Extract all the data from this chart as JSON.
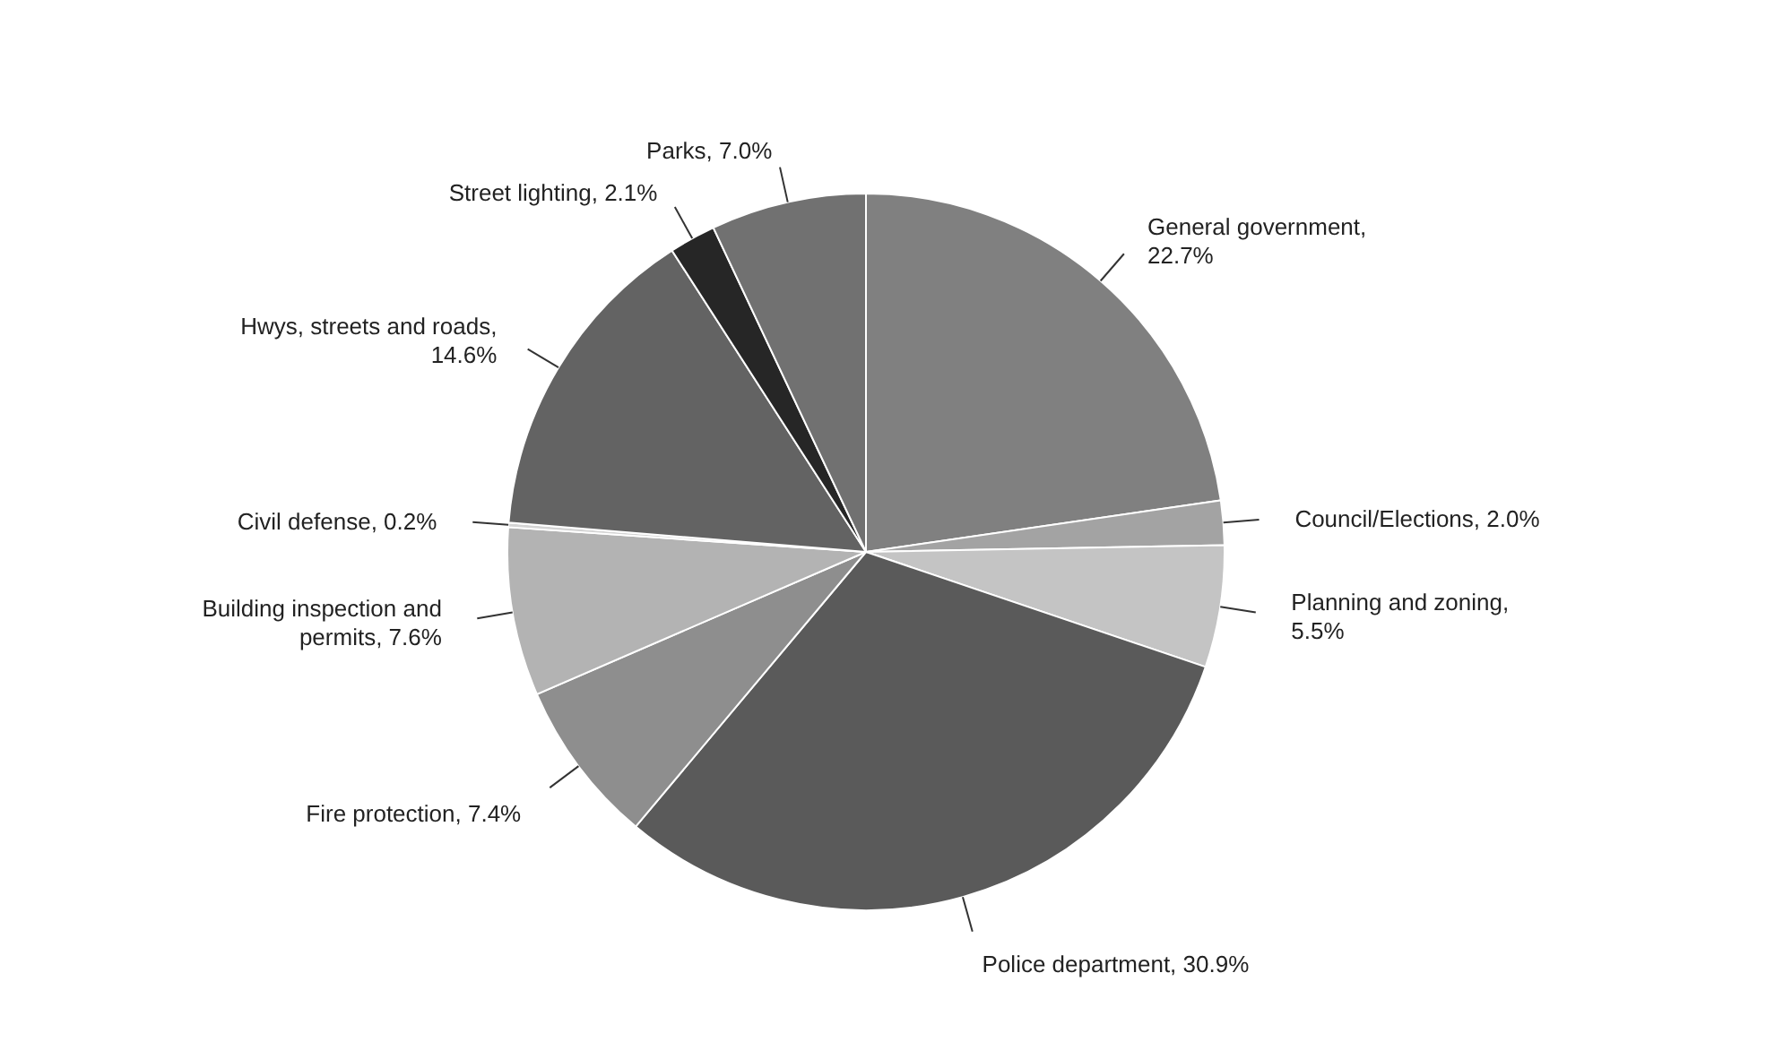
{
  "chart_data": {
    "type": "pie",
    "categories": [
      "General government",
      "Council/Elections",
      "Planning and zoning",
      "Police department",
      "Fire protection",
      "Building inspection and permits",
      "Civil defense",
      "Hwys, streets and roads",
      "Street lighting",
      "Parks"
    ],
    "values": [
      22.7,
      2.0,
      5.5,
      30.9,
      7.4,
      7.6,
      0.2,
      14.6,
      2.1,
      7.0
    ],
    "colors": [
      "#808080",
      "#a3a3a3",
      "#c4c4c4",
      "#5a5a5a",
      "#8e8e8e",
      "#b3b3b3",
      "#d4d4d4",
      "#636363",
      "#262626",
      "#717171"
    ],
    "value_labels": [
      ", 22.7%",
      ", 2.0%",
      ", 5.5%",
      ", 30.9%",
      ", 7.4%",
      ", 7.6%",
      ", 0.2%",
      ", 14.6%",
      ", 2.1%",
      ", 7.0%"
    ],
    "legend": false
  }
}
